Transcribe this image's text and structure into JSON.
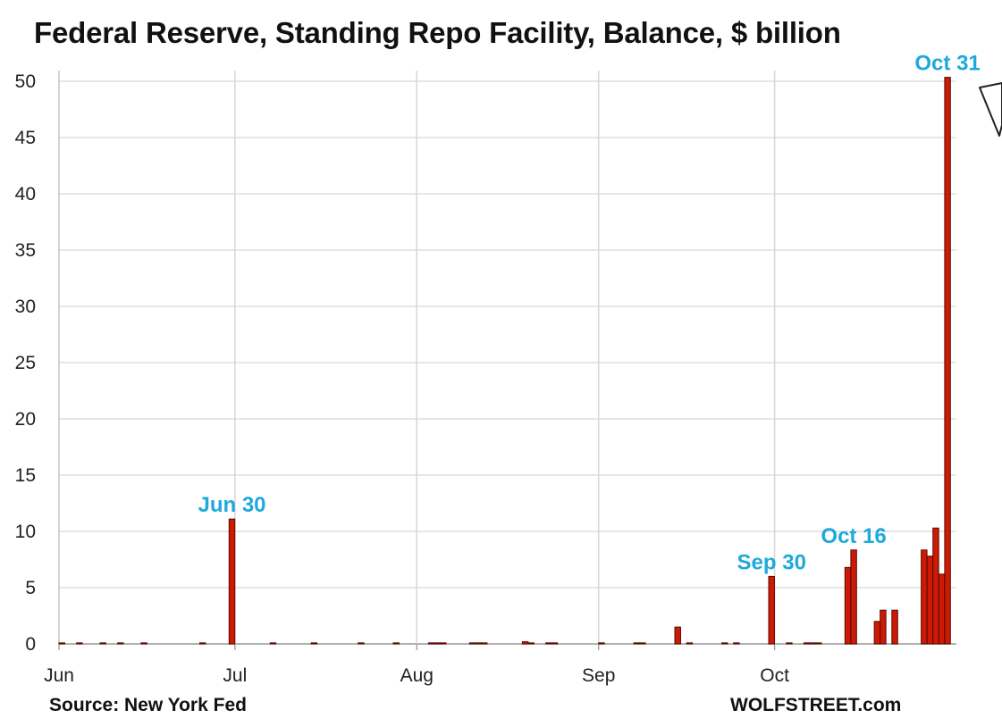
{
  "chart_data": {
    "type": "bar",
    "title": "Federal Reserve, Standing Repo Facility, Balance, $ billion",
    "xlabel": "",
    "ylabel": "",
    "ylim": [
      0,
      50
    ],
    "yticks": [
      0,
      5,
      10,
      15,
      20,
      25,
      30,
      35,
      40,
      45,
      50
    ],
    "grid": true,
    "x_day_range": [
      0,
      153
    ],
    "month_ticks": [
      {
        "label": "Jun",
        "day": 0
      },
      {
        "label": "Jul",
        "day": 30
      },
      {
        "label": "Aug",
        "day": 61
      },
      {
        "label": "Sep",
        "day": 92
      },
      {
        "label": "Oct",
        "day": 122
      }
    ],
    "series": [
      {
        "name": "Standing Repo Facility balance",
        "color": "#cc1a05",
        "edge": "#5a0a00",
        "points": [
          {
            "day": 0,
            "value": 0.01
          },
          {
            "day": 3,
            "value": 0.01
          },
          {
            "day": 7,
            "value": 0.01
          },
          {
            "day": 10,
            "value": 0.01
          },
          {
            "day": 14,
            "value": 0.01
          },
          {
            "day": 24,
            "value": 0.01
          },
          {
            "day": 29,
            "value": 11.1
          },
          {
            "day": 36,
            "value": 0.01
          },
          {
            "day": 43,
            "value": 0.01
          },
          {
            "day": 51,
            "value": 0.01
          },
          {
            "day": 57,
            "value": 0.01
          },
          {
            "day": 63,
            "value": 0.01
          },
          {
            "day": 64,
            "value": 0.01
          },
          {
            "day": 65,
            "value": 0.01
          },
          {
            "day": 70,
            "value": 0.01
          },
          {
            "day": 71,
            "value": 0.01
          },
          {
            "day": 72,
            "value": 0.01
          },
          {
            "day": 79,
            "value": 0.2
          },
          {
            "day": 80,
            "value": 0.01
          },
          {
            "day": 83,
            "value": 0.01
          },
          {
            "day": 84,
            "value": 0.01
          },
          {
            "day": 92,
            "value": 0.01
          },
          {
            "day": 98,
            "value": 0.01
          },
          {
            "day": 99,
            "value": 0.01
          },
          {
            "day": 105,
            "value": 1.5
          },
          {
            "day": 107,
            "value": 0.01
          },
          {
            "day": 113,
            "value": 0.01
          },
          {
            "day": 115,
            "value": 0.01
          },
          {
            "day": 121,
            "value": 6.0
          },
          {
            "day": 124,
            "value": 0.01
          },
          {
            "day": 127,
            "value": 0.01
          },
          {
            "day": 128,
            "value": 0.01
          },
          {
            "day": 129,
            "value": 0.01
          },
          {
            "day": 134,
            "value": 6.8
          },
          {
            "day": 135,
            "value": 8.35
          },
          {
            "day": 139,
            "value": 2.0
          },
          {
            "day": 140,
            "value": 3.0
          },
          {
            "day": 142,
            "value": 3.0
          },
          {
            "day": 147,
            "value": 8.35
          },
          {
            "day": 148,
            "value": 7.8
          },
          {
            "day": 149,
            "value": 10.3
          },
          {
            "day": 150,
            "value": 6.2
          },
          {
            "day": 151,
            "value": 50.35
          }
        ]
      }
    ],
    "annotations": [
      {
        "text": "Jun 30",
        "day": 29
      },
      {
        "text": "Sep 30",
        "day": 121
      },
      {
        "text": "Oct 16",
        "day": 135
      },
      {
        "text": "Oct 31",
        "day": 151
      }
    ]
  },
  "footer": {
    "source": "Source: New York Fed",
    "brand": "WOLFSTREET.com"
  }
}
